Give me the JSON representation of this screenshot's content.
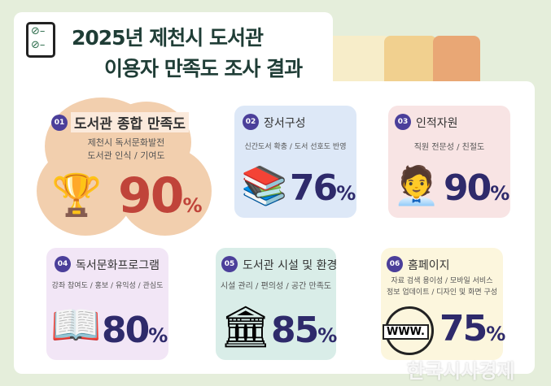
{
  "header": {
    "line1": "2025년 제천시 도서관",
    "line2": "이용자 만족도 조사 결과"
  },
  "colors": {
    "background": "#e5eedb",
    "title": "#1f3d36",
    "percent": "#2e2a6b",
    "highlight_percent": "#c0443a",
    "badge": "#4b3f9a"
  },
  "items": [
    {
      "num": "01",
      "title": "도서관 종합 만족도",
      "desc1": "제천시 독서문화발전",
      "desc2": "도서관 인식 / 기여도",
      "value": "90",
      "unit": "%",
      "icon": "trophy-stars-icon"
    },
    {
      "num": "02",
      "title": "장서구성",
      "desc1": "신간도서 확충 / 도서 선호도 반영",
      "value": "76",
      "unit": "%",
      "icon": "bookshelf-icon"
    },
    {
      "num": "03",
      "title": "인적자원",
      "desc1": "직원 전문성 / 친절도",
      "value": "90",
      "unit": "%",
      "icon": "staff-person-icon"
    },
    {
      "num": "04",
      "title": "독서문화프로그램",
      "desc1": "강좌 참여도 / 홍보 / 유익성 / 관심도",
      "value": "80",
      "unit": "%",
      "icon": "reading-woman-icon"
    },
    {
      "num": "05",
      "title": "도서관 시설 및 환경",
      "desc1": "시설 관리 / 편의성 / 공간 만족도",
      "value": "85",
      "unit": "%",
      "icon": "library-building-icon"
    },
    {
      "num": "06",
      "title": "홈페이지",
      "desc1": "자료 검색 용이성 / 모바일 서비스",
      "desc2": "정보 업데이트 / 디자인 및 화면 구성",
      "value": "75",
      "unit": "%",
      "icon": "globe-www-icon",
      "www": "WWW."
    }
  ],
  "watermark": "한국시사경제"
}
